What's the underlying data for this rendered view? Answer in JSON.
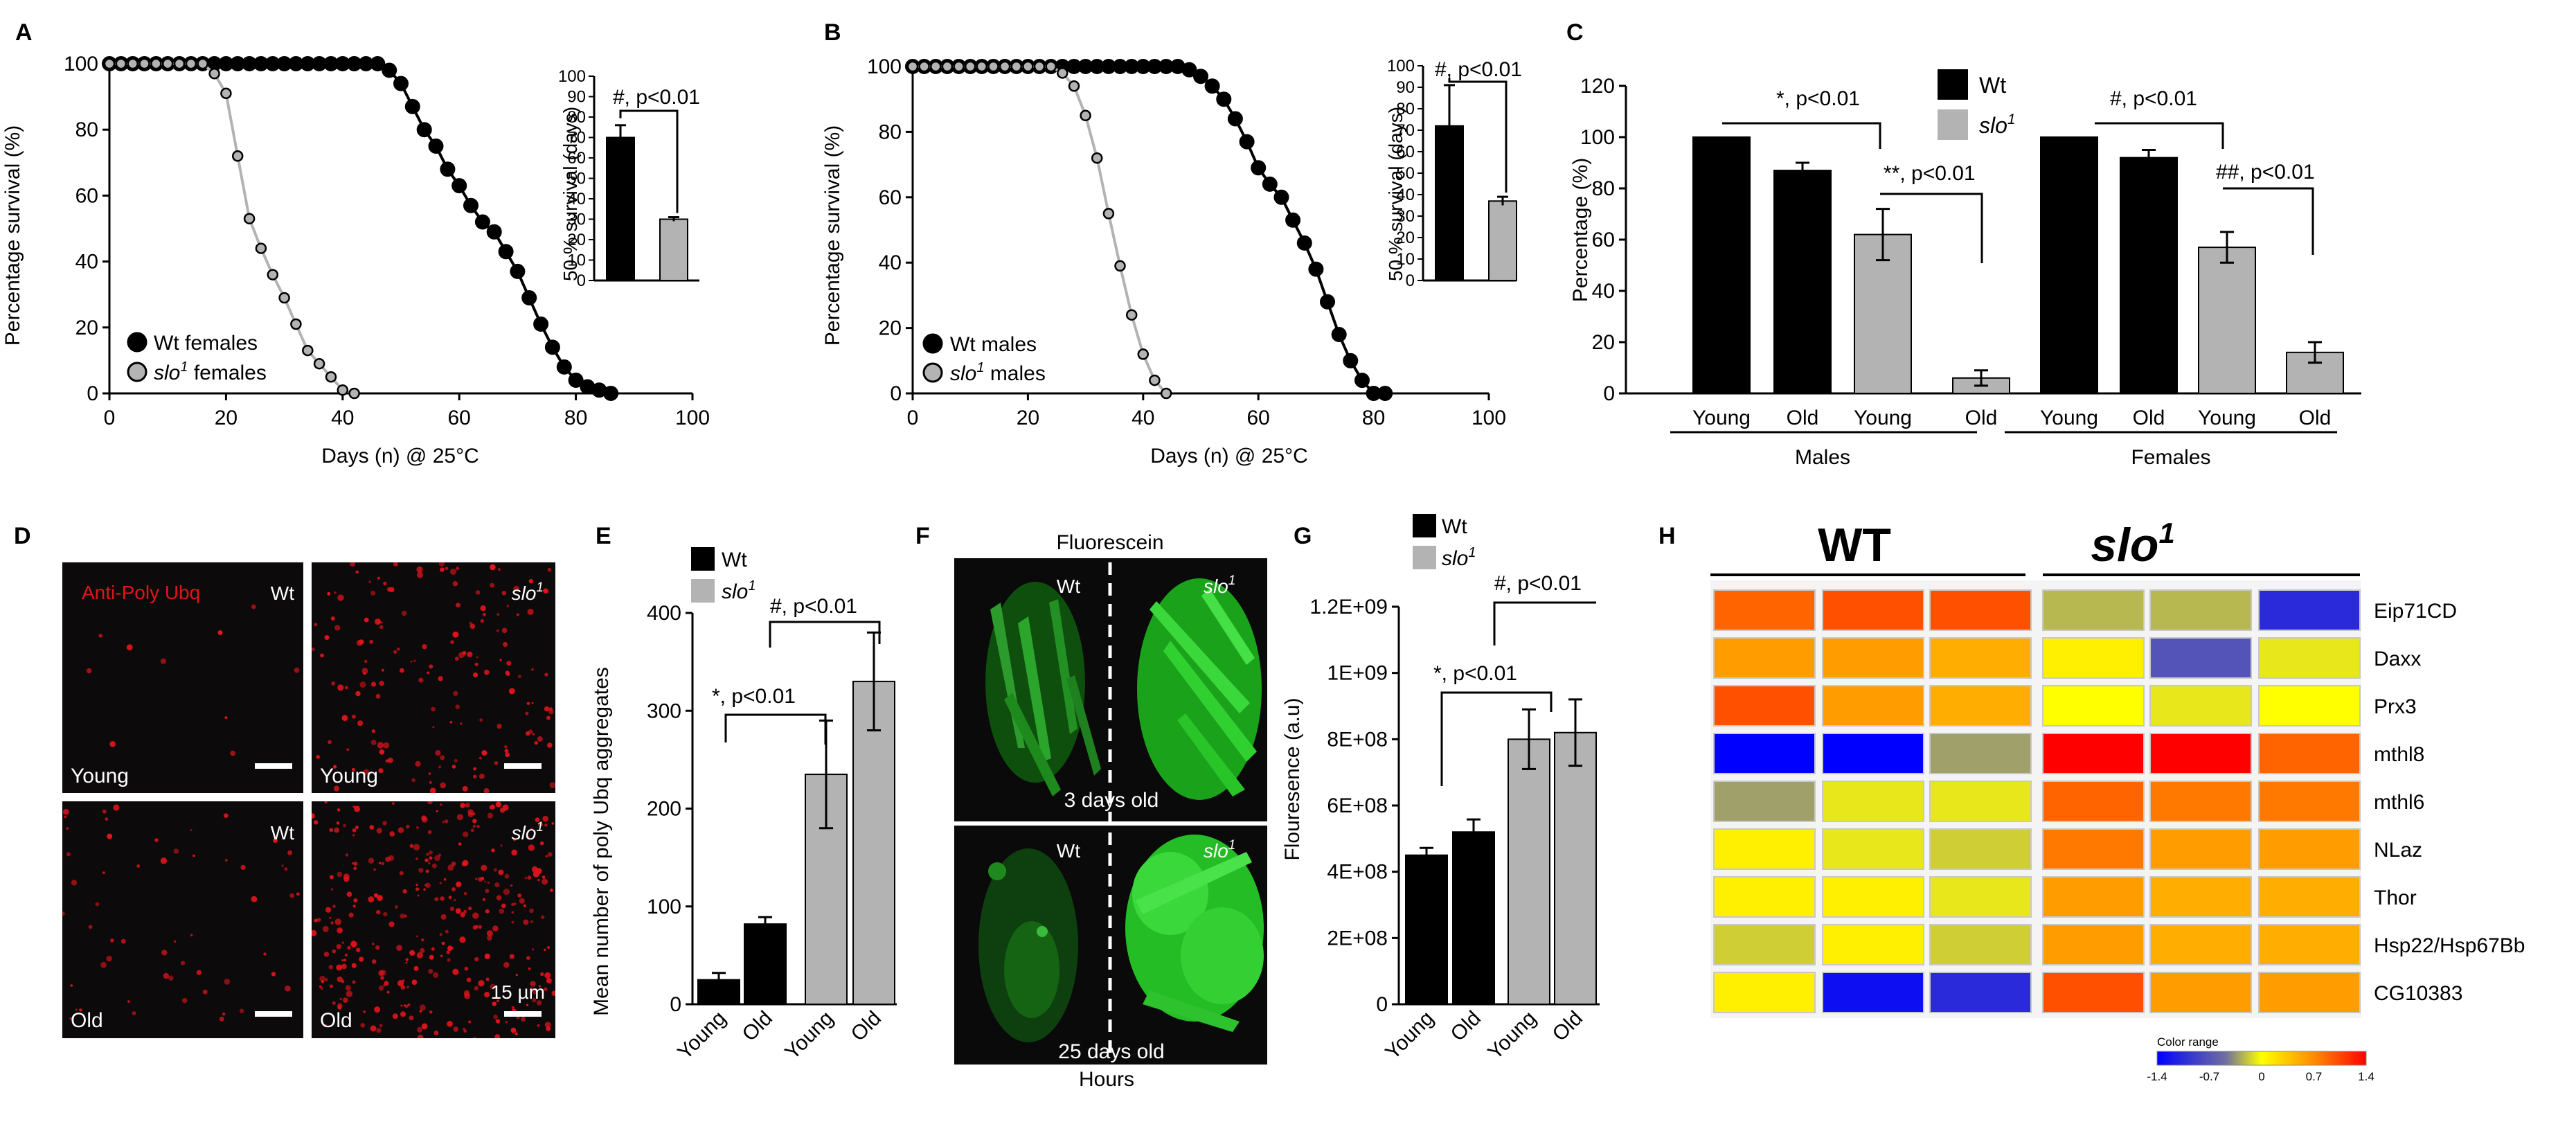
{
  "colors": {
    "wt": "#000000",
    "slo": "#b3b3b3",
    "micro_bg": "#0c0a0a",
    "dots": "#e2141c",
    "green": "#1fd41f"
  },
  "chart_data": [
    {
      "panel": "A",
      "type": "line",
      "xlabel": "Days (n) @ 25°C",
      "ylabel": "Percentage survival (%)",
      "xlim": [
        0,
        100
      ],
      "ylim": [
        0,
        100
      ],
      "xticks": [
        "0",
        "20",
        "40",
        "60",
        "80",
        "100"
      ],
      "yticks": [
        "0",
        "20",
        "40",
        "60",
        "80",
        "100"
      ],
      "series": [
        {
          "name": "Wt females",
          "color": "#000000",
          "x": [
            0,
            2,
            4,
            6,
            8,
            10,
            12,
            14,
            16,
            18,
            20,
            22,
            24,
            26,
            28,
            30,
            32,
            34,
            36,
            38,
            40,
            42,
            44,
            46,
            48,
            50,
            52,
            54,
            56,
            58,
            60,
            62,
            64,
            66,
            68,
            70,
            72,
            74,
            76,
            78,
            80,
            82,
            84,
            86
          ],
          "y": [
            100,
            100,
            100,
            100,
            100,
            100,
            100,
            100,
            100,
            100,
            100,
            100,
            100,
            100,
            100,
            100,
            100,
            100,
            100,
            100,
            100,
            100,
            100,
            100,
            98,
            94,
            87,
            80,
            75,
            68,
            63,
            57,
            52,
            49,
            43,
            37,
            29,
            21,
            14,
            8,
            4,
            2,
            1,
            0
          ]
        },
        {
          "name": "slo females",
          "color": "#b3b3b3",
          "x": [
            0,
            2,
            4,
            6,
            8,
            10,
            12,
            14,
            16,
            18,
            20,
            22,
            24,
            26,
            28,
            30,
            32,
            34,
            36,
            38,
            40,
            42
          ],
          "y": [
            100,
            100,
            100,
            100,
            100,
            100,
            100,
            100,
            100,
            97,
            91,
            72,
            53,
            44,
            36,
            29,
            21,
            13,
            9,
            5,
            1,
            0
          ]
        }
      ],
      "legend": [
        {
          "label_pre": "Wt females",
          "sup": "",
          "label_post": ""
        },
        {
          "label_pre": "slo",
          "sup": "1",
          "label_post": " females"
        }
      ],
      "inset": {
        "ylabel": "50 % survival (days)",
        "ylim": [
          0,
          100
        ],
        "yticks": [
          "0",
          "10",
          "20",
          "30",
          "40",
          "50",
          "60",
          "70",
          "80",
          "90",
          "100"
        ],
        "values": [
          70,
          30
        ],
        "errors": [
          6,
          1
        ],
        "annotation": "#, p<0.01"
      }
    },
    {
      "panel": "B",
      "type": "line",
      "xlabel": "Days (n) @ 25°C",
      "ylabel": "Percentage survival (%)",
      "xlim": [
        0,
        100
      ],
      "ylim": [
        0,
        100
      ],
      "xticks": [
        "0",
        "20",
        "40",
        "60",
        "80",
        "100"
      ],
      "yticks": [
        "0",
        "20",
        "40",
        "60",
        "80",
        "100"
      ],
      "series": [
        {
          "name": "Wt males",
          "color": "#000000",
          "x": [
            0,
            2,
            4,
            6,
            8,
            10,
            12,
            14,
            16,
            18,
            20,
            22,
            24,
            26,
            28,
            30,
            32,
            34,
            36,
            38,
            40,
            42,
            44,
            46,
            48,
            50,
            52,
            54,
            56,
            58,
            60,
            62,
            64,
            66,
            68,
            70,
            72,
            74,
            76,
            78,
            80,
            82
          ],
          "y": [
            100,
            100,
            100,
            100,
            100,
            100,
            100,
            100,
            100,
            100,
            100,
            100,
            100,
            100,
            100,
            100,
            100,
            100,
            100,
            100,
            100,
            100,
            100,
            100,
            99,
            97,
            94,
            90,
            84,
            77,
            69,
            64,
            60,
            53,
            46,
            38,
            28,
            18,
            10,
            4,
            0,
            0
          ]
        },
        {
          "name": "slo males",
          "color": "#b3b3b3",
          "x": [
            0,
            2,
            4,
            6,
            8,
            10,
            12,
            14,
            16,
            18,
            20,
            22,
            24,
            26,
            28,
            30,
            32,
            34,
            36,
            38,
            40,
            42,
            44
          ],
          "y": [
            100,
            100,
            100,
            100,
            100,
            100,
            100,
            100,
            100,
            100,
            100,
            100,
            100,
            98,
            94,
            85,
            72,
            55,
            39,
            24,
            12,
            4,
            0
          ]
        }
      ],
      "legend": [
        {
          "label_pre": "Wt males",
          "sup": "",
          "label_post": ""
        },
        {
          "label_pre": "slo",
          "sup": "1",
          "label_post": " males"
        }
      ],
      "inset": {
        "ylabel": "50 % survival (days)",
        "ylim": [
          0,
          100
        ],
        "yticks": [
          "0",
          "10",
          "20",
          "30",
          "40",
          "50",
          "60",
          "70",
          "80",
          "90",
          "100"
        ],
        "values": [
          72,
          37
        ],
        "errors": [
          19,
          2
        ],
        "annotation": "#, p<0.01"
      }
    },
    {
      "panel": "C",
      "type": "bar",
      "ylabel": "Percentage  (%)",
      "ylim": [
        0,
        120
      ],
      "yticks": [
        "0",
        "20",
        "40",
        "60",
        "80",
        "100",
        "120"
      ],
      "categories": [
        "Young",
        "Old",
        "Young",
        "Old",
        "Young",
        "Old",
        "Young",
        "Old"
      ],
      "groups": [
        "Males",
        "Females"
      ],
      "values": [
        100,
        87,
        62,
        6,
        100,
        92,
        57,
        16
      ],
      "errors": [
        0,
        3,
        10,
        3,
        0,
        3,
        6,
        4
      ],
      "colors": [
        "#000000",
        "#000000",
        "#b3b3b3",
        "#b3b3b3",
        "#000000",
        "#000000",
        "#b3b3b3",
        "#b3b3b3"
      ],
      "legend": [
        {
          "label": "Wt",
          "sup": ""
        },
        {
          "label": "slo",
          "sup": "1"
        }
      ],
      "annotations": [
        "*, p<0.01",
        "**, p<0.01",
        "#, p<0.01",
        "##, p<0.01"
      ]
    },
    {
      "panel": "E",
      "type": "bar",
      "ylabel": "Mean number of  poly Ubq aggregates",
      "ylim": [
        0,
        400
      ],
      "yticks": [
        "0",
        "100",
        "200",
        "300",
        "400"
      ],
      "categories": [
        "Young",
        "Old",
        "Young",
        "Old"
      ],
      "values": [
        25,
        82,
        235,
        330
      ],
      "errors": [
        7,
        7,
        55,
        50
      ],
      "colors": [
        "#000000",
        "#000000",
        "#b3b3b3",
        "#b3b3b3"
      ],
      "legend": [
        {
          "label": "Wt",
          "sup": ""
        },
        {
          "label": "slo",
          "sup": "1"
        }
      ],
      "annotations": [
        "*, p<0.01",
        "#, p<0.01"
      ]
    },
    {
      "panel": "G",
      "type": "bar",
      "ylabel": "Flouresence (a.u)",
      "ylim": [
        0,
        1200000000
      ],
      "yticks": [
        "0",
        "2E+08",
        "4E+08",
        "6E+08",
        "8E+08",
        "1E+09",
        "1.2E+09"
      ],
      "categories": [
        "Young",
        "Old",
        "Young",
        "Old"
      ],
      "values": [
        450000000,
        520000000,
        800000000,
        820000000
      ],
      "errors": [
        22000000,
        38000000,
        90000000,
        100000000
      ],
      "colors": [
        "#000000",
        "#000000",
        "#b3b3b3",
        "#b3b3b3"
      ],
      "legend": [
        {
          "label": "Wt",
          "sup": ""
        },
        {
          "label": "slo",
          "sup": "1"
        }
      ],
      "annotations": [
        "*, p<0.01",
        "#, p<0.01"
      ]
    },
    {
      "panel": "H",
      "type": "heatmap",
      "group_labels": [
        {
          "label": "WT",
          "sup": ""
        },
        {
          "label": "slo",
          "sup": "1"
        }
      ],
      "rows": [
        "Eip71CD",
        "Daxx",
        "Prx3",
        "mthl8",
        "mthl6",
        "NLaz",
        "Thor",
        "Hsp22/Hsp67Bb",
        "CG10383"
      ],
      "values": [
        [
          0.9,
          1.0,
          1.0,
          -0.3,
          -0.3,
          -1.1
        ],
        [
          0.6,
          0.6,
          0.5,
          0.1,
          -0.8,
          -0.1
        ],
        [
          1.0,
          0.6,
          0.5,
          0.0,
          -0.1,
          0.0
        ],
        [
          -1.4,
          -1.4,
          -0.4,
          1.4,
          1.4,
          0.9
        ],
        [
          -0.4,
          -0.1,
          -0.1,
          0.9,
          0.8,
          0.8
        ],
        [
          0.1,
          -0.1,
          -0.2,
          0.8,
          0.6,
          0.6
        ],
        [
          0.1,
          0.1,
          -0.1,
          0.6,
          0.5,
          0.5
        ],
        [
          -0.2,
          0.1,
          -0.2,
          0.6,
          0.5,
          0.5
        ],
        [
          0.1,
          -1.3,
          -1.1,
          1.0,
          0.6,
          0.6
        ]
      ],
      "colorbar": {
        "title": "Color range",
        "ticks": [
          "-1.4",
          "-0.7",
          "0",
          "0.7",
          "1.4"
        ],
        "range": [
          -1.4,
          1.4
        ]
      }
    }
  ],
  "panel_letters": {
    "a": "A",
    "b": "B",
    "c": "C",
    "d": "D",
    "e": "E",
    "f": "F",
    "g": "G",
    "h": "H"
  },
  "micrographs": {
    "stain_label": "Anti-Poly Ubq",
    "tiles": [
      {
        "age": "Young",
        "genotype": {
          "label": "Wt",
          "sup": ""
        }
      },
      {
        "age": "Young",
        "genotype": {
          "label": "slo",
          "sup": "1"
        }
      },
      {
        "age": "Old",
        "genotype": {
          "label": "Wt",
          "sup": ""
        }
      },
      {
        "age": "Old",
        "genotype": {
          "label": "slo",
          "sup": "1"
        },
        "scale": "15 µm"
      }
    ]
  },
  "fluorescein": {
    "title": "Fluorescein",
    "footer": "Hours",
    "left_label": {
      "label": "Wt",
      "sup": ""
    },
    "right_label": {
      "label": "slo",
      "sup": "1"
    },
    "ages": [
      "3 days old",
      "25 days old"
    ]
  }
}
